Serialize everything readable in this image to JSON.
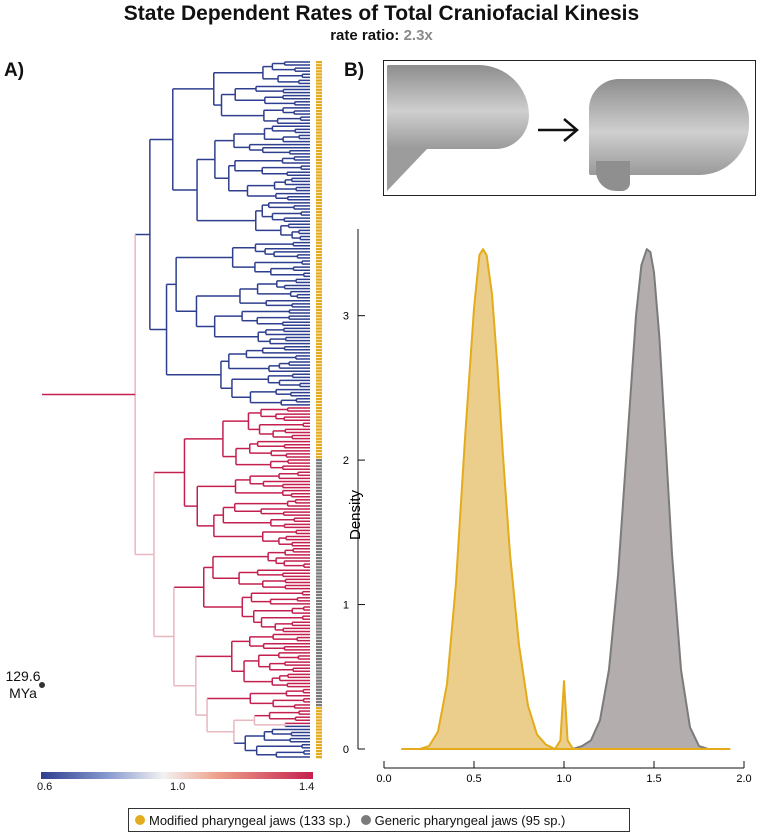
{
  "title": "State Dependent Rates of Total Craniofacial Kinesis",
  "subtitle_label": "rate ratio:",
  "subtitle_value": "2.3x",
  "panel_a": "A)",
  "panel_b": "B)",
  "root_age": "129.6",
  "root_unit": "MYa",
  "rate_scale": {
    "ticks": [
      "0.6",
      "1.0",
      "1.4"
    ]
  },
  "colors": {
    "modified": "#e4ac1c",
    "modified_fill": "#ebcd8c",
    "generic": "#7b7b7b",
    "generic_fill": "#b3adad",
    "slow_branch": "#2f3f8f",
    "fast_branch": "#c4204f"
  },
  "icons": {
    "arrow": "arrow-right-icon"
  },
  "legend": [
    {
      "label": "Modified pharyngeal jaws (133 sp.)",
      "color": "#e4ac1c"
    },
    {
      "label": "Generic pharyngeal jaws (95 sp.)",
      "color": "#7b7b7b"
    }
  ],
  "chart_data": {
    "type": "area",
    "title": "",
    "xlabel": "",
    "ylabel": "Density",
    "xlim": [
      0.0,
      2.0
    ],
    "ylim": [
      0,
      3.6
    ],
    "xticks": [
      "0.0",
      "0.5",
      "1.0",
      "1.5",
      "2.0"
    ],
    "yticks": [
      "0",
      "1",
      "2",
      "3"
    ],
    "series": [
      {
        "name": "Modified pharyngeal jaws (133 sp.)",
        "x": [
          0.1,
          0.2,
          0.25,
          0.3,
          0.35,
          0.4,
          0.45,
          0.5,
          0.53,
          0.55,
          0.57,
          0.6,
          0.63,
          0.66,
          0.7,
          0.75,
          0.8,
          0.85,
          0.9,
          0.95,
          0.98,
          1.0,
          1.02,
          1.05,
          1.1,
          1.3,
          1.6,
          1.92
        ],
        "y": [
          0.0,
          0.0,
          0.02,
          0.12,
          0.45,
          1.15,
          2.15,
          3.05,
          3.42,
          3.46,
          3.42,
          3.15,
          2.65,
          2.05,
          1.35,
          0.72,
          0.3,
          0.1,
          0.03,
          0.0,
          0.06,
          0.47,
          0.06,
          0.0,
          0.0,
          0.0,
          0.0,
          0.0
        ]
      },
      {
        "name": "Generic pharyngeal jaws (95 sp.)",
        "x": [
          1.05,
          1.1,
          1.15,
          1.2,
          1.25,
          1.3,
          1.35,
          1.4,
          1.43,
          1.46,
          1.48,
          1.5,
          1.53,
          1.57,
          1.6,
          1.65,
          1.7,
          1.75,
          1.8
        ],
        "y": [
          0.0,
          0.02,
          0.06,
          0.2,
          0.55,
          1.2,
          2.1,
          3.0,
          3.35,
          3.46,
          3.44,
          3.3,
          2.85,
          2.0,
          1.35,
          0.55,
          0.15,
          0.02,
          0.0
        ]
      }
    ]
  }
}
